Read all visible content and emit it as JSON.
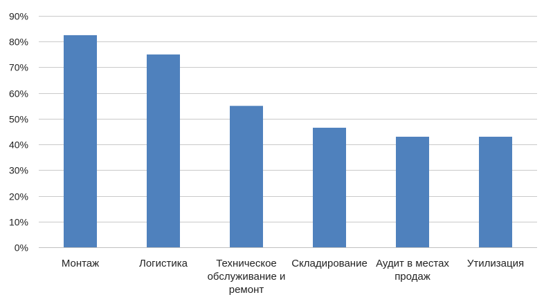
{
  "chart_data": {
    "type": "bar",
    "title": "",
    "xlabel": "",
    "ylabel": "",
    "ylim": [
      0,
      90
    ],
    "y_ticks": [
      0,
      10,
      20,
      30,
      40,
      50,
      60,
      70,
      80,
      90
    ],
    "y_tick_labels": [
      "0%",
      "10%",
      "20%",
      "30%",
      "40%",
      "50%",
      "60%",
      "70%",
      "80%",
      "90%"
    ],
    "grid": true,
    "legend": "none",
    "bar_color": "#4f81bd",
    "categories": [
      [
        "Монтаж"
      ],
      [
        "Логистика"
      ],
      [
        "Техническое",
        "обслуживание и",
        "ремонт"
      ],
      [
        "Складирование"
      ],
      [
        "Аудит в местах",
        "продаж"
      ],
      [
        "Утилизация"
      ]
    ],
    "values": [
      82.5,
      75,
      55,
      46.5,
      43,
      43
    ]
  }
}
